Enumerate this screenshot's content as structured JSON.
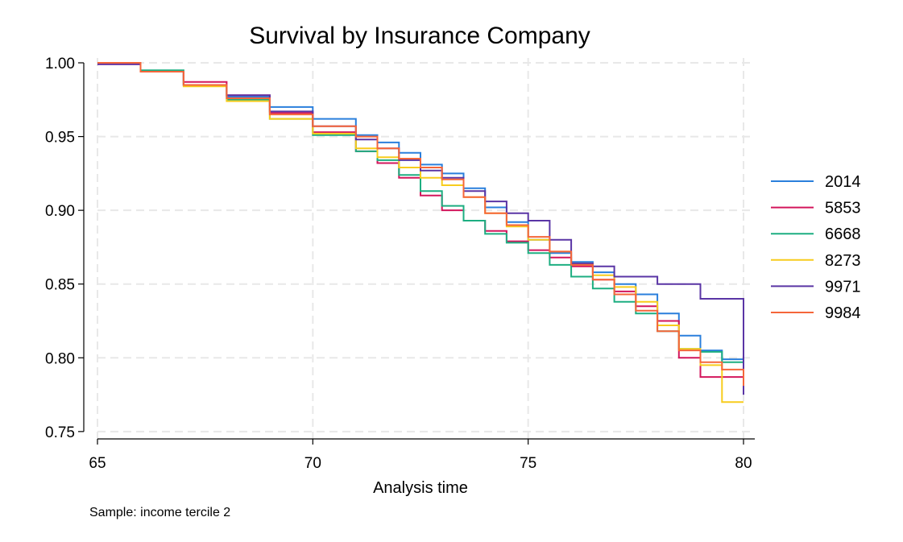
{
  "chart_data": {
    "type": "line",
    "title": "Survival by Insurance Company",
    "xlabel": "Analysis time",
    "ylabel": "",
    "note": "Sample: income tercile 2",
    "xlim": [
      65,
      80
    ],
    "ylim": [
      0.745,
      1.0
    ],
    "xticks": [
      {
        "value": 65,
        "label": "65"
      },
      {
        "value": 70,
        "label": "70"
      },
      {
        "value": 75,
        "label": "75"
      },
      {
        "value": 80,
        "label": "80"
      }
    ],
    "yticks": [
      {
        "value": 0.75,
        "label": "0.75"
      },
      {
        "value": 0.8,
        "label": "0.80"
      },
      {
        "value": 0.85,
        "label": "0.85"
      },
      {
        "value": 0.9,
        "label": "0.90"
      },
      {
        "value": 0.95,
        "label": "0.95"
      },
      {
        "value": 1.0,
        "label": "1.00"
      }
    ],
    "grid": true,
    "legend_position": "right",
    "series": [
      {
        "name": "2014",
        "color": "#2a7fdc",
        "x": [
          65.0,
          66.0,
          67.0,
          68.0,
          69.0,
          70.0,
          71.0,
          71.5,
          72.0,
          72.5,
          73.0,
          73.5,
          74.0,
          74.5,
          75.0,
          75.5,
          76.0,
          76.5,
          77.0,
          77.5,
          78.0,
          78.5,
          79.0,
          79.5,
          80.0
        ],
        "y": [
          1.0,
          0.994,
          0.985,
          0.977,
          0.97,
          0.962,
          0.951,
          0.946,
          0.939,
          0.931,
          0.925,
          0.915,
          0.902,
          0.892,
          0.88,
          0.871,
          0.865,
          0.858,
          0.85,
          0.843,
          0.83,
          0.815,
          0.805,
          0.799,
          0.792
        ]
      },
      {
        "name": "5853",
        "color": "#d3165c",
        "x": [
          65.0,
          66.0,
          67.0,
          68.0,
          69.0,
          70.0,
          71.0,
          71.5,
          72.0,
          72.5,
          73.0,
          73.5,
          74.0,
          74.5,
          75.0,
          75.5,
          76.0,
          76.5,
          77.0,
          77.5,
          78.0,
          78.5,
          79.0,
          79.5,
          80.0
        ],
        "y": [
          0.999,
          0.994,
          0.987,
          0.978,
          0.966,
          0.953,
          0.94,
          0.932,
          0.922,
          0.91,
          0.9,
          0.893,
          0.886,
          0.879,
          0.873,
          0.868,
          0.862,
          0.853,
          0.845,
          0.835,
          0.825,
          0.8,
          0.787,
          0.787,
          0.787
        ]
      },
      {
        "name": "6668",
        "color": "#1dae81",
        "x": [
          65.0,
          66.0,
          67.0,
          68.0,
          69.0,
          70.0,
          71.0,
          71.5,
          72.0,
          72.5,
          73.0,
          73.5,
          74.0,
          74.5,
          75.0,
          75.5,
          76.0,
          76.5,
          77.0,
          77.5,
          78.0,
          78.5,
          79.0,
          79.5,
          80.0
        ],
        "y": [
          1.0,
          0.995,
          0.985,
          0.975,
          0.962,
          0.951,
          0.94,
          0.934,
          0.924,
          0.913,
          0.903,
          0.893,
          0.884,
          0.878,
          0.871,
          0.863,
          0.855,
          0.847,
          0.838,
          0.83,
          0.818,
          0.806,
          0.804,
          0.797,
          0.789
        ]
      },
      {
        "name": "8273",
        "color": "#f7cc1d",
        "x": [
          65.0,
          66.0,
          67.0,
          68.0,
          69.0,
          70.0,
          71.0,
          71.5,
          72.0,
          72.5,
          73.0,
          73.5,
          74.0,
          74.5,
          75.0,
          75.5,
          76.0,
          76.5,
          77.0,
          77.5,
          78.0,
          78.5,
          79.0,
          79.5,
          80.0
        ],
        "y": [
          1.0,
          0.994,
          0.984,
          0.974,
          0.962,
          0.952,
          0.942,
          0.936,
          0.929,
          0.922,
          0.917,
          0.909,
          0.898,
          0.889,
          0.88,
          0.872,
          0.864,
          0.856,
          0.848,
          0.838,
          0.822,
          0.806,
          0.795,
          0.77,
          0.77
        ]
      },
      {
        "name": "9971",
        "color": "#5a35a5",
        "x": [
          65.0,
          66.0,
          67.0,
          68.0,
          69.0,
          70.0,
          71.0,
          71.5,
          72.0,
          72.5,
          73.0,
          73.5,
          74.0,
          74.5,
          75.0,
          75.5,
          76.0,
          76.5,
          77.0,
          77.5,
          78.0,
          78.5,
          79.0,
          79.5,
          80.0
        ],
        "y": [
          0.999,
          0.994,
          0.985,
          0.978,
          0.967,
          0.957,
          0.948,
          0.942,
          0.934,
          0.927,
          0.922,
          0.913,
          0.906,
          0.898,
          0.893,
          0.88,
          0.864,
          0.862,
          0.855,
          0.855,
          0.85,
          0.85,
          0.84,
          0.84,
          0.775
        ]
      },
      {
        "name": "9984",
        "color": "#f5663a",
        "x": [
          65.0,
          66.0,
          67.0,
          68.0,
          69.0,
          70.0,
          71.0,
          71.5,
          72.0,
          72.5,
          73.0,
          73.5,
          74.0,
          74.5,
          75.0,
          75.5,
          76.0,
          76.5,
          77.0,
          77.5,
          78.0,
          78.5,
          79.0,
          79.5,
          80.0
        ],
        "y": [
          1.0,
          0.994,
          0.985,
          0.976,
          0.965,
          0.957,
          0.95,
          0.942,
          0.935,
          0.929,
          0.921,
          0.909,
          0.898,
          0.89,
          0.882,
          0.872,
          0.863,
          0.853,
          0.843,
          0.832,
          0.818,
          0.805,
          0.797,
          0.792,
          0.781
        ]
      }
    ]
  }
}
